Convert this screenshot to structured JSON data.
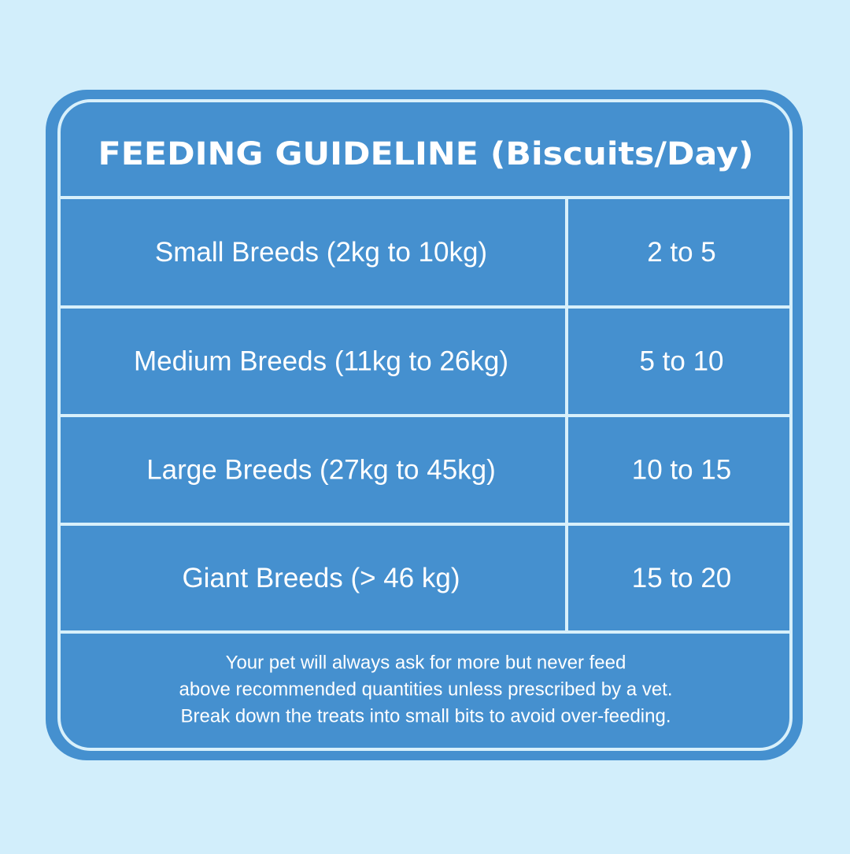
{
  "table": {
    "title": "FEEDING GUIDELINE (Biscuits/Day)",
    "rows": [
      [
        "Small Breeds (2kg to 10kg)",
        "2 to 5"
      ],
      [
        "Medium Breeds (11kg to 26kg)",
        "5 to 10"
      ],
      [
        "Large Breeds (27kg to 45kg)",
        "10 to 15"
      ],
      [
        "Giant Breeds (> 46 kg)",
        "15 to 20"
      ]
    ],
    "note": [
      "Your pet will always ask for more but never feed",
      "above recommended quantities unless prescribed by a vet.",
      "Break down the treats into small bits to avoid over-feeding."
    ]
  }
}
